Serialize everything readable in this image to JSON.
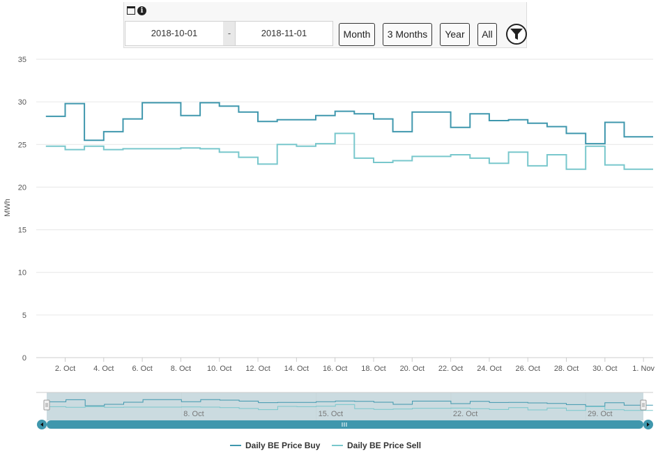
{
  "toolbar": {
    "icons": [
      "calendar-icon",
      "info-icon"
    ],
    "date_from": "2018-10-01",
    "separator": "-",
    "date_to": "2018-11-01",
    "buttons": [
      "Month",
      "3 Months",
      "Year",
      "All"
    ],
    "filter_icon": "filter-icon"
  },
  "colors": {
    "buy": "#3f97ad",
    "sell": "#78c7cc",
    "grid": "#e6e6e6",
    "navigator_mask": "#b9cfd6",
    "scrollbar": "#3f97ad"
  },
  "chart_data": {
    "type": "line",
    "step": true,
    "title": "",
    "ylabel": "MWh",
    "ylim": [
      0,
      35
    ],
    "yticks": [
      0,
      5,
      10,
      15,
      20,
      25,
      30,
      35
    ],
    "x": [
      "2018-10-01",
      "2018-10-02",
      "2018-10-03",
      "2018-10-04",
      "2018-10-05",
      "2018-10-06",
      "2018-10-07",
      "2018-10-08",
      "2018-10-09",
      "2018-10-10",
      "2018-10-11",
      "2018-10-12",
      "2018-10-13",
      "2018-10-14",
      "2018-10-15",
      "2018-10-16",
      "2018-10-17",
      "2018-10-18",
      "2018-10-19",
      "2018-10-20",
      "2018-10-21",
      "2018-10-22",
      "2018-10-23",
      "2018-10-24",
      "2018-10-25",
      "2018-10-26",
      "2018-10-27",
      "2018-10-28",
      "2018-10-29",
      "2018-10-30",
      "2018-10-31",
      "2018-11-01"
    ],
    "xticks": [
      "2. Oct",
      "4. Oct",
      "6. Oct",
      "8. Oct",
      "10. Oct",
      "12. Oct",
      "14. Oct",
      "16. Oct",
      "18. Oct",
      "20. Oct",
      "22. Oct",
      "24. Oct",
      "26. Oct",
      "28. Oct",
      "30. Oct",
      "1. Nov"
    ],
    "series": [
      {
        "name": "Daily BE Price Buy",
        "values": [
          28.3,
          29.8,
          25.5,
          26.5,
          28.0,
          29.9,
          29.9,
          28.4,
          29.9,
          29.5,
          28.8,
          27.7,
          27.9,
          27.9,
          28.4,
          28.9,
          28.6,
          28.0,
          26.5,
          28.8,
          28.8,
          27.0,
          28.6,
          27.8,
          27.9,
          27.5,
          27.1,
          26.3,
          25.1,
          27.6,
          25.9,
          25.9
        ]
      },
      {
        "name": "Daily BE Price Sell",
        "values": [
          24.8,
          24.4,
          24.8,
          24.4,
          24.5,
          24.5,
          24.5,
          24.6,
          24.5,
          24.1,
          23.5,
          22.7,
          25.0,
          24.8,
          25.1,
          26.3,
          23.4,
          22.9,
          23.1,
          23.6,
          23.6,
          23.8,
          23.4,
          22.8,
          24.1,
          22.5,
          23.8,
          22.1,
          24.8,
          22.6,
          22.1,
          22.1
        ]
      }
    ],
    "navigator": {
      "xticks": [
        "8. Oct",
        "15. Oct",
        "22. Oct",
        "29. Oct"
      ]
    },
    "legend": {
      "placement": "bottom-center",
      "entries": [
        "Daily BE Price Buy",
        "Daily BE Price Sell"
      ]
    }
  }
}
